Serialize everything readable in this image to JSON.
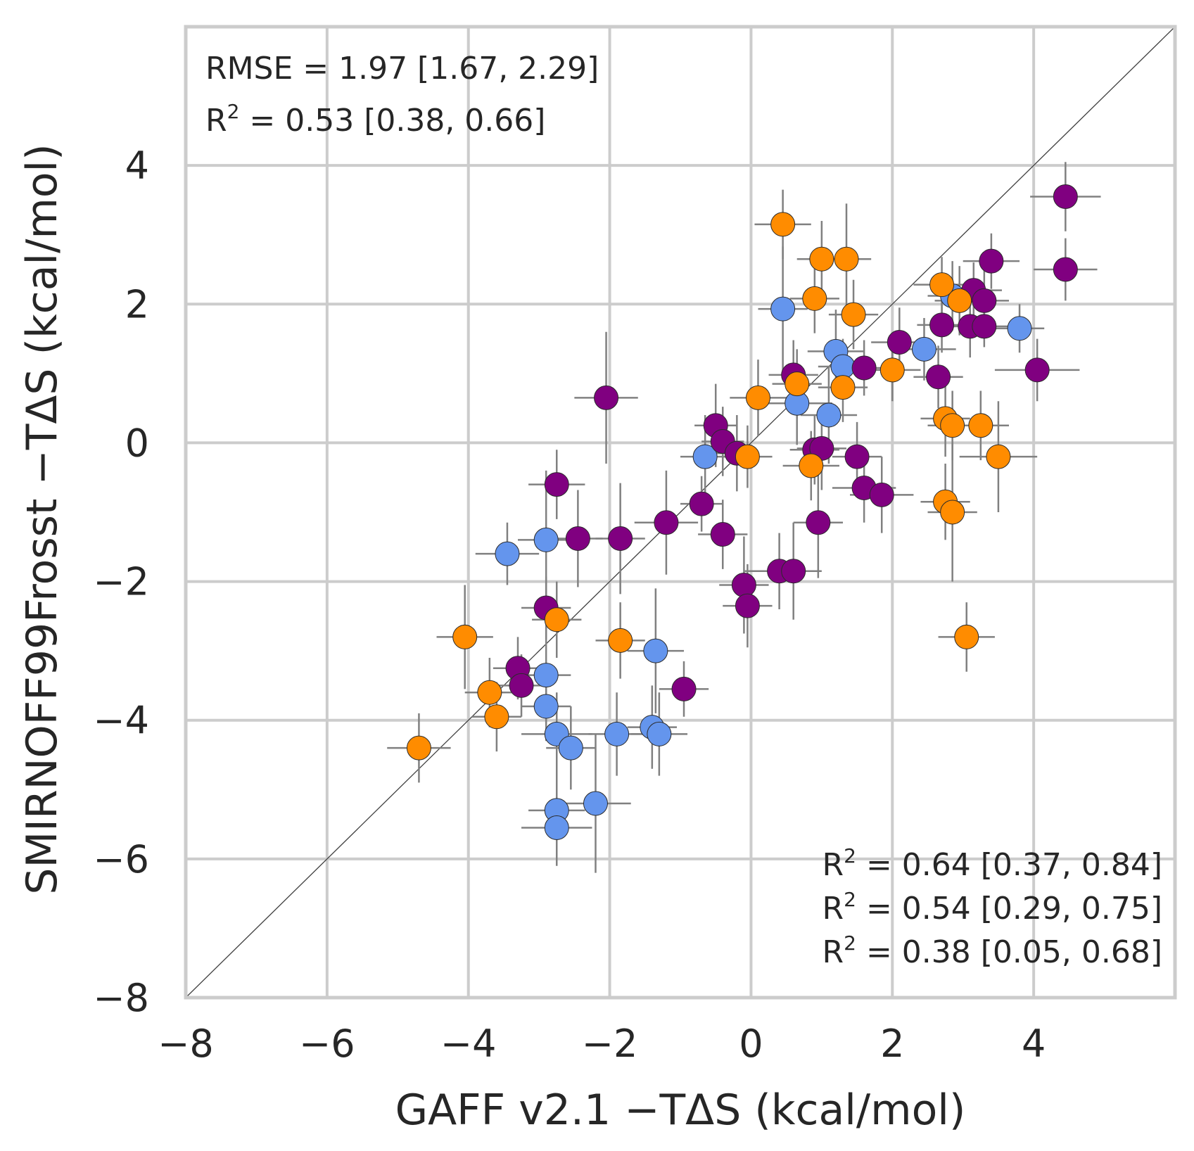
{
  "chart_data": {
    "type": "scatter",
    "xlabel": "GAFF v2.1 −TΔS (kcal/mol)",
    "ylabel": "SMIRNOFF99Frosst −TΔS (kcal/mol)",
    "xlim": [
      -8,
      6
    ],
    "ylim": [
      -8,
      6
    ],
    "xticks": [
      -8,
      -6,
      -4,
      -2,
      0,
      2,
      4
    ],
    "yticks": [
      -8,
      -6,
      -4,
      -2,
      0,
      2,
      4
    ],
    "xtick_labels": [
      "−8",
      "−6",
      "−4",
      "−2",
      "0",
      "2",
      "4"
    ],
    "ytick_labels": [
      "−8",
      "−6",
      "−4",
      "−2",
      "0",
      "2",
      "4"
    ],
    "grid": true,
    "identity_line": true,
    "stats": {
      "rmse_line": {
        "label": "RMSE = 1.97 [1.67, 2.29]"
      },
      "r2_line": {
        "prefix": "R",
        "sup": "2",
        "rest": " = 0.53 [0.38, 0.66]"
      }
    },
    "series": [
      {
        "color": "#6495ED",
        "r2_prefix": "R",
        "r2_sup": "2",
        "r2_rest": " = 0.64 [0.37, 0.84]",
        "points": [
          {
            "x": 0.45,
            "y": 1.93,
            "xerr": 0.35,
            "yerr": 0.9
          },
          {
            "x": 2.85,
            "y": 2.12,
            "xerr": 0.35,
            "yerr": 0.5
          },
          {
            "x": 3.8,
            "y": 1.65,
            "xerr": 0.35,
            "yerr": 0.35
          },
          {
            "x": 2.45,
            "y": 1.35,
            "xerr": 0.45,
            "yerr": 0.45
          },
          {
            "x": 1.2,
            "y": 1.32,
            "xerr": 0.4,
            "yerr": 0.6
          },
          {
            "x": 1.3,
            "y": 1.1,
            "xerr": 0.35,
            "yerr": 0.4
          },
          {
            "x": 0.65,
            "y": 0.57,
            "xerr": 0.5,
            "yerr": 0.6
          },
          {
            "x": 1.1,
            "y": 0.4,
            "xerr": 0.4,
            "yerr": 0.7
          },
          {
            "x": -0.65,
            "y": -0.2,
            "xerr": 0.35,
            "yerr": 0.6
          },
          {
            "x": -3.45,
            "y": -1.6,
            "xerr": 0.45,
            "yerr": 0.45
          },
          {
            "x": -2.9,
            "y": -1.4,
            "xerr": 0.4,
            "yerr": 1.0
          },
          {
            "x": -1.35,
            "y": -3.0,
            "xerr": 0.4,
            "yerr": 0.9
          },
          {
            "x": -2.9,
            "y": -3.35,
            "xerr": 0.35,
            "yerr": 0.7
          },
          {
            "x": -2.9,
            "y": -3.8,
            "xerr": 0.35,
            "yerr": 0.5
          },
          {
            "x": -2.75,
            "y": -4.2,
            "xerr": 0.5,
            "yerr": 0.6
          },
          {
            "x": -2.55,
            "y": -4.4,
            "xerr": 0.35,
            "yerr": 0.6
          },
          {
            "x": -1.9,
            "y": -4.2,
            "xerr": 0.4,
            "yerr": 0.6
          },
          {
            "x": -1.4,
            "y": -4.1,
            "xerr": 0.35,
            "yerr": 0.6
          },
          {
            "x": -1.3,
            "y": -4.2,
            "xerr": 0.4,
            "yerr": 0.6
          },
          {
            "x": -2.2,
            "y": -5.2,
            "xerr": 0.5,
            "yerr": 1.0
          },
          {
            "x": -2.75,
            "y": -5.3,
            "xerr": 0.4,
            "yerr": 0.6
          },
          {
            "x": -2.75,
            "y": -5.55,
            "xerr": 0.5,
            "yerr": 0.55
          }
        ]
      },
      {
        "color": "#800080",
        "r2_prefix": "R",
        "r2_sup": "2",
        "r2_rest": " = 0.54 [0.29, 0.75]",
        "points": [
          {
            "x": 4.45,
            "y": 3.55,
            "xerr": 0.5,
            "yerr": 0.5
          },
          {
            "x": 4.45,
            "y": 2.5,
            "xerr": 0.45,
            "yerr": 0.45
          },
          {
            "x": 3.4,
            "y": 2.62,
            "xerr": 0.4,
            "yerr": 0.4
          },
          {
            "x": 3.15,
            "y": 2.2,
            "xerr": 0.4,
            "yerr": 0.4
          },
          {
            "x": 3.3,
            "y": 2.05,
            "xerr": 0.35,
            "yerr": 0.45
          },
          {
            "x": 3.1,
            "y": 1.68,
            "xerr": 0.35,
            "yerr": 0.45
          },
          {
            "x": 3.3,
            "y": 1.68,
            "xerr": 0.35,
            "yerr": 0.3
          },
          {
            "x": 2.7,
            "y": 1.7,
            "xerr": 0.35,
            "yerr": 0.4
          },
          {
            "x": 2.1,
            "y": 1.45,
            "xerr": 0.4,
            "yerr": 0.5
          },
          {
            "x": 1.6,
            "y": 1.08,
            "xerr": 0.35,
            "yerr": 0.4
          },
          {
            "x": 4.05,
            "y": 1.05,
            "xerr": 0.6,
            "yerr": 0.45
          },
          {
            "x": 2.65,
            "y": 0.95,
            "xerr": 0.35,
            "yerr": 0.45
          },
          {
            "x": 0.6,
            "y": 0.98,
            "xerr": 0.35,
            "yerr": 0.5
          },
          {
            "x": -2.05,
            "y": 0.65,
            "xerr": 0.45,
            "yerr": 0.95
          },
          {
            "x": -0.5,
            "y": 0.25,
            "xerr": 0.3,
            "yerr": 0.6
          },
          {
            "x": -0.4,
            "y": 0.02,
            "xerr": 0.3,
            "yerr": 0.5
          },
          {
            "x": -0.2,
            "y": -0.15,
            "xerr": 0.3,
            "yerr": 0.55
          },
          {
            "x": 0.9,
            "y": -0.1,
            "xerr": 0.35,
            "yerr": 0.5
          },
          {
            "x": 1.0,
            "y": -0.08,
            "xerr": 0.35,
            "yerr": 0.6
          },
          {
            "x": 1.5,
            "y": -0.2,
            "xerr": 0.35,
            "yerr": 0.5
          },
          {
            "x": 1.6,
            "y": -0.65,
            "xerr": 0.45,
            "yerr": 0.5
          },
          {
            "x": 1.85,
            "y": -0.75,
            "xerr": 0.45,
            "yerr": 0.55
          },
          {
            "x": -2.75,
            "y": -0.6,
            "xerr": 0.4,
            "yerr": 0.5
          },
          {
            "x": -0.7,
            "y": -0.88,
            "xerr": 0.3,
            "yerr": 0.4
          },
          {
            "x": 0.95,
            "y": -1.15,
            "xerr": 0.35,
            "yerr": 0.8
          },
          {
            "x": -1.2,
            "y": -1.15,
            "xerr": 0.45,
            "yerr": 0.75
          },
          {
            "x": -0.4,
            "y": -1.32,
            "xerr": 0.35,
            "yerr": 0.5
          },
          {
            "x": -2.45,
            "y": -1.38,
            "xerr": 0.35,
            "yerr": 0.7
          },
          {
            "x": -1.85,
            "y": -1.38,
            "xerr": 0.35,
            "yerr": 0.8
          },
          {
            "x": 0.4,
            "y": -1.85,
            "xerr": 0.5,
            "yerr": 0.55
          },
          {
            "x": 0.6,
            "y": -1.85,
            "xerr": 0.4,
            "yerr": 0.7
          },
          {
            "x": -0.1,
            "y": -2.05,
            "xerr": 0.35,
            "yerr": 0.7
          },
          {
            "x": -0.05,
            "y": -2.35,
            "xerr": 0.35,
            "yerr": 0.6
          },
          {
            "x": -2.9,
            "y": -2.38,
            "xerr": 0.35,
            "yerr": 0.45
          },
          {
            "x": -3.3,
            "y": -3.25,
            "xerr": 0.35,
            "yerr": 0.45
          },
          {
            "x": -3.25,
            "y": -3.5,
            "xerr": 0.35,
            "yerr": 0.45
          },
          {
            "x": -0.95,
            "y": -3.55,
            "xerr": 0.35,
            "yerr": 0.4
          }
        ]
      },
      {
        "color": "#FF8C00",
        "r2_prefix": "R",
        "r2_sup": "2",
        "r2_rest": " = 0.38 [0.05, 0.68]",
        "points": [
          {
            "x": 0.45,
            "y": 3.15,
            "xerr": 0.4,
            "yerr": 0.5
          },
          {
            "x": 1.0,
            "y": 2.65,
            "xerr": 0.35,
            "yerr": 0.55
          },
          {
            "x": 1.35,
            "y": 2.65,
            "xerr": 0.35,
            "yerr": 0.8
          },
          {
            "x": 2.7,
            "y": 2.28,
            "xerr": 0.4,
            "yerr": 0.4
          },
          {
            "x": 2.95,
            "y": 2.05,
            "xerr": 0.35,
            "yerr": 0.5
          },
          {
            "x": 0.9,
            "y": 2.08,
            "xerr": 0.35,
            "yerr": 0.5
          },
          {
            "x": 1.45,
            "y": 1.85,
            "xerr": 0.35,
            "yerr": 0.5
          },
          {
            "x": 2.0,
            "y": 1.05,
            "xerr": 0.4,
            "yerr": 0.45
          },
          {
            "x": 1.3,
            "y": 0.8,
            "xerr": 0.35,
            "yerr": 0.5
          },
          {
            "x": 0.65,
            "y": 0.85,
            "xerr": 0.35,
            "yerr": 0.5
          },
          {
            "x": 0.1,
            "y": 0.65,
            "xerr": 0.4,
            "yerr": 0.55
          },
          {
            "x": 2.75,
            "y": 0.35,
            "xerr": 0.35,
            "yerr": 0.55
          },
          {
            "x": 2.85,
            "y": 0.25,
            "xerr": 0.35,
            "yerr": 0.5
          },
          {
            "x": 3.25,
            "y": 0.25,
            "xerr": 0.4,
            "yerr": 0.5
          },
          {
            "x": 3.5,
            "y": -0.2,
            "xerr": 0.55,
            "yerr": 0.8
          },
          {
            "x": -0.05,
            "y": -0.2,
            "xerr": 0.35,
            "yerr": 0.45
          },
          {
            "x": 0.85,
            "y": -0.33,
            "xerr": 0.4,
            "yerr": 0.5
          },
          {
            "x": 2.75,
            "y": -0.85,
            "xerr": 0.35,
            "yerr": 0.55
          },
          {
            "x": 2.85,
            "y": -1.0,
            "xerr": 0.35,
            "yerr": 1.0
          },
          {
            "x": -2.75,
            "y": -2.55,
            "xerr": 0.35,
            "yerr": 0.55
          },
          {
            "x": 3.05,
            "y": -2.8,
            "xerr": 0.4,
            "yerr": 0.5
          },
          {
            "x": -4.05,
            "y": -2.8,
            "xerr": 0.4,
            "yerr": 0.75
          },
          {
            "x": -1.85,
            "y": -2.85,
            "xerr": 0.35,
            "yerr": 0.55
          },
          {
            "x": -3.7,
            "y": -3.6,
            "xerr": 0.35,
            "yerr": 0.5
          },
          {
            "x": -3.6,
            "y": -3.95,
            "xerr": 0.35,
            "yerr": 0.5
          },
          {
            "x": -4.7,
            "y": -4.4,
            "xerr": 0.45,
            "yerr": 0.5
          }
        ]
      }
    ]
  }
}
